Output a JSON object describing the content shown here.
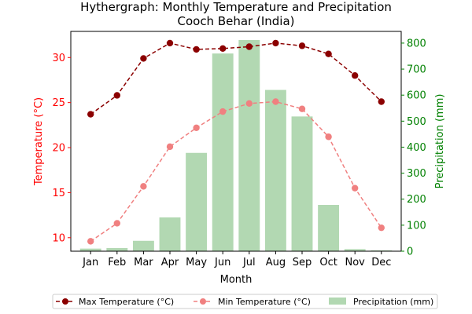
{
  "chart_data": {
    "type": "bar",
    "title": "Hythergraph: Monthly Temperature and Precipitation",
    "subtitle": "Cooch Behar (India)",
    "xlabel": "Month",
    "ylabel_left": "Temperature (°C)",
    "ylabel_right": "Precipitation (mm)",
    "left_color": "#ff0000",
    "right_color": "#008000",
    "categories": [
      "Jan",
      "Feb",
      "Mar",
      "Apr",
      "May",
      "Jun",
      "Jul",
      "Aug",
      "Sep",
      "Oct",
      "Nov",
      "Dec"
    ],
    "ylim_left": [
      8.5,
      32.9
    ],
    "yticks_left": [
      10,
      15,
      20,
      25,
      30
    ],
    "ylim_right": [
      0,
      845
    ],
    "yticks_right": [
      0,
      100,
      200,
      300,
      400,
      500,
      600,
      700,
      800
    ],
    "series": [
      {
        "name": "Max Temperature (°C)",
        "kind": "line",
        "axis": "left",
        "color": "#8b0000",
        "values": [
          23.7,
          25.8,
          29.9,
          31.6,
          30.9,
          31.0,
          31.2,
          31.6,
          31.3,
          30.4,
          28.0,
          25.1
        ]
      },
      {
        "name": "Min Temperature (°C)",
        "kind": "line",
        "axis": "left",
        "color": "#f08080",
        "values": [
          9.6,
          11.6,
          15.7,
          20.1,
          22.2,
          24.0,
          24.9,
          25.1,
          24.3,
          21.2,
          15.5,
          11.1
        ]
      },
      {
        "name": "Precipitation (mm)",
        "kind": "bar",
        "axis": "right",
        "color": "#b2d8b2",
        "values": [
          10,
          12,
          40,
          130,
          378,
          760,
          812,
          620,
          518,
          178,
          8,
          3
        ]
      }
    ],
    "legend_position": "bottom-center",
    "grid": false
  }
}
